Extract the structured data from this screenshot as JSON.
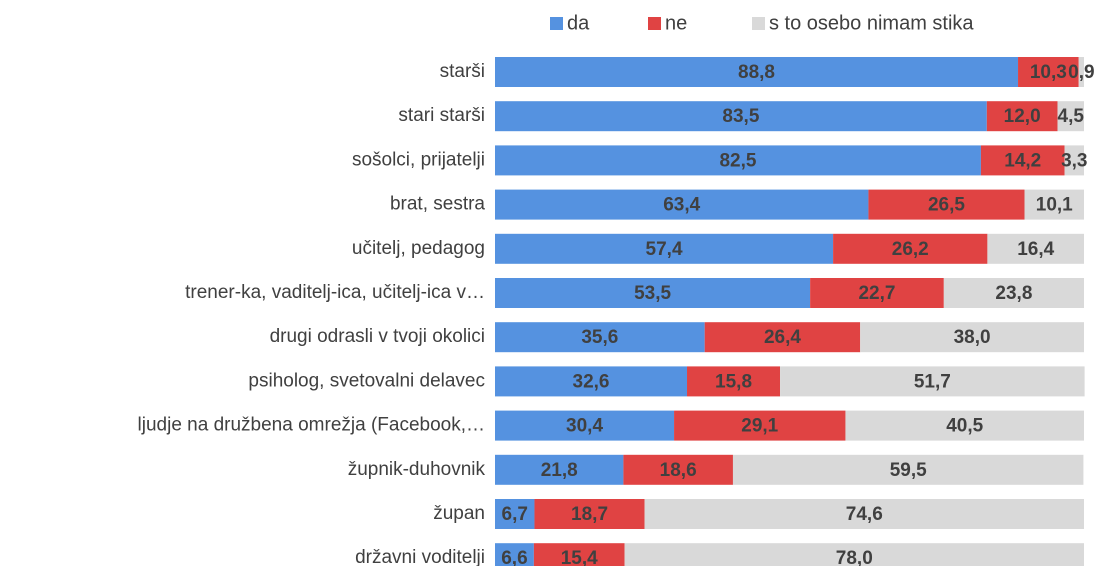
{
  "chart_data": {
    "type": "stacked_barh",
    "categories": [
      "starši",
      "stari starši",
      "sošolci, prijatelji",
      "brat, sestra",
      "učitelj, pedagog",
      "trener-ka, vaditelj-ica, učitelj-ica v…",
      "drugi odrasli v tvoji okolici",
      "psiholog, svetovalni delavec",
      "ljudje na družbena omrežja (Facebook,…",
      "župnik-duhovnik",
      "župan",
      "državni voditelji"
    ],
    "series": [
      {
        "name": "da",
        "color": "#5592e0",
        "values": [
          88.8,
          83.5,
          82.5,
          63.4,
          57.4,
          53.5,
          35.6,
          32.6,
          30.4,
          21.8,
          6.7,
          6.6
        ],
        "value_labels": [
          "88,8",
          "83,5",
          "82,5",
          "63,4",
          "57,4",
          "53,5",
          "35,6",
          "32,6",
          "30,4",
          "21,8",
          "6,7",
          "6,6"
        ]
      },
      {
        "name": "ne",
        "color": "#e04343",
        "values": [
          10.3,
          12.0,
          14.2,
          26.5,
          26.2,
          22.7,
          26.4,
          15.8,
          29.1,
          18.6,
          18.7,
          15.4
        ],
        "value_labels": [
          "10,3",
          "12,0",
          "14,2",
          "26,5",
          "26,2",
          "22,7",
          "26,4",
          "15,8",
          "29,1",
          "18,6",
          "18,7",
          "15,4"
        ]
      },
      {
        "name": "s to osebo nimam stika",
        "color": "#d9d9d9",
        "values": [
          0.9,
          4.5,
          3.3,
          10.1,
          16.4,
          23.8,
          38.0,
          51.7,
          40.5,
          59.5,
          74.6,
          78.0
        ],
        "value_labels": [
          "0,9",
          "4,5",
          "3,3",
          "10,1",
          "16,4",
          "23,8",
          "38,0",
          "51,7",
          "40,5",
          "59,5",
          "74,6",
          "78,0"
        ]
      }
    ],
    "xlim": [
      0,
      100
    ]
  }
}
